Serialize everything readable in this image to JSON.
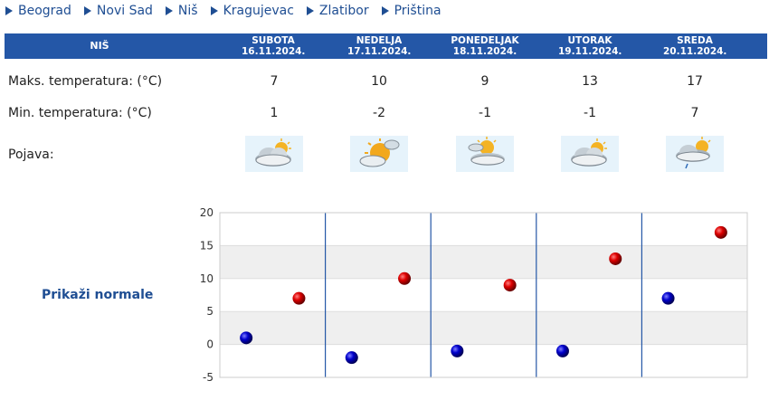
{
  "nav": {
    "items": [
      {
        "label": "Beograd"
      },
      {
        "label": "Novi Sad"
      },
      {
        "label": "Niš"
      },
      {
        "label": "Kragujevac"
      },
      {
        "label": "Zlatibor"
      },
      {
        "label": "Priština"
      }
    ]
  },
  "table": {
    "city": "NIŠ",
    "days": [
      {
        "day": "SUBOTA",
        "date": "16.11.2024.",
        "max": "7",
        "min": "1",
        "icon": "partly-cloudy-icon"
      },
      {
        "day": "NEDELJA",
        "date": "17.11.2024.",
        "max": "10",
        "min": "-2",
        "icon": "mostly-sunny-icon"
      },
      {
        "day": "PONEDELJAK",
        "date": "18.11.2024.",
        "max": "9",
        "min": "-1",
        "icon": "sun-behind-clouds-icon"
      },
      {
        "day": "UTORAK",
        "date": "19.11.2024.",
        "max": "13",
        "min": "-1",
        "icon": "partly-cloudy-icon"
      },
      {
        "day": "SREDA",
        "date": "20.11.2024.",
        "max": "17",
        "min": "7",
        "icon": "cloudy-drizzle-icon"
      }
    ],
    "labels": {
      "max": "Maks. temperatura: (°C)",
      "min": "Min. temperatura: (°C)",
      "phenomenon": "Pojava:"
    }
  },
  "normals_link": "Prikaži normale",
  "colors": {
    "header_bg": "#2457a7",
    "link": "#1f4e93",
    "max_marker": "#cc0000",
    "min_marker": "#0000cc",
    "band": "#efefef"
  },
  "chart_data": {
    "type": "scatter",
    "ylim": [
      -5,
      20
    ],
    "yticks": [
      "20",
      "15",
      "10",
      "5",
      "0",
      "-5"
    ],
    "series": [
      {
        "values": [
          7,
          10,
          9,
          13,
          17
        ]
      },
      {
        "values": [
          1,
          -2,
          -1,
          -1,
          7
        ]
      }
    ]
  }
}
